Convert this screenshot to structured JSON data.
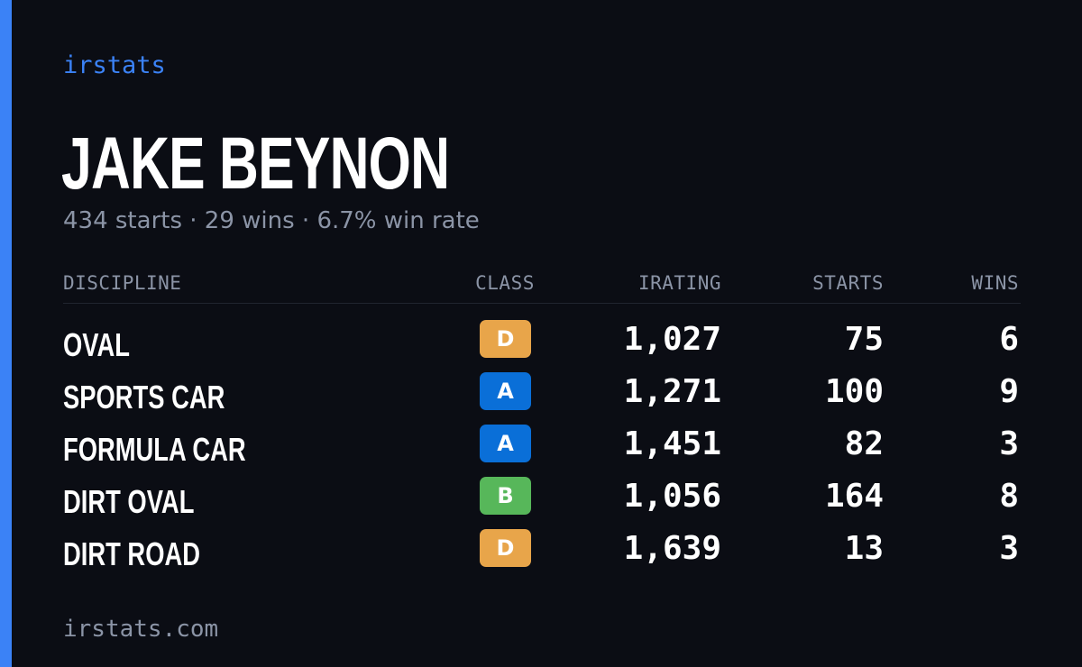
{
  "brand": "irstats",
  "driver": {
    "name": "JAKE BEYNON",
    "summary": "434 starts · 29 wins · 6.7% win rate"
  },
  "colors": {
    "accent": "#3b82f6",
    "background": "#0b0d14",
    "muted": "#8b94a6",
    "class_a": "#0a6fd8",
    "class_b": "#57b75a",
    "class_d": "#e8a54a"
  },
  "table": {
    "headers": {
      "discipline": "DISCIPLINE",
      "class": "CLASS",
      "irating": "IRATING",
      "starts": "STARTS",
      "wins": "WINS"
    },
    "rows": [
      {
        "discipline": "OVAL",
        "class": "D",
        "class_color": "#e8a54a",
        "irating": "1,027",
        "starts": "75",
        "wins": "6"
      },
      {
        "discipline": "SPORTS CAR",
        "class": "A",
        "class_color": "#0a6fd8",
        "irating": "1,271",
        "starts": "100",
        "wins": "9"
      },
      {
        "discipline": "FORMULA CAR",
        "class": "A",
        "class_color": "#0a6fd8",
        "irating": "1,451",
        "starts": "82",
        "wins": "3"
      },
      {
        "discipline": "DIRT OVAL",
        "class": "B",
        "class_color": "#57b75a",
        "irating": "1,056",
        "starts": "164",
        "wins": "8"
      },
      {
        "discipline": "DIRT ROAD",
        "class": "D",
        "class_color": "#e8a54a",
        "irating": "1,639",
        "starts": "13",
        "wins": "3"
      }
    ]
  },
  "footer": {
    "url": "irstats.com"
  }
}
